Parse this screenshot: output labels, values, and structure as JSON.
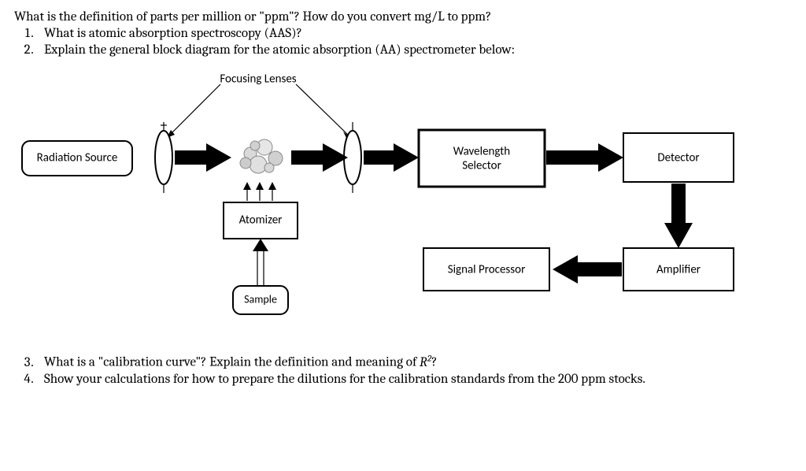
{
  "intro": "What is the definition of parts per million or \"ppm\"? How do you convert mg/L to ppm?",
  "q1": "What is atomic absorption spectroscopy (AAS)?",
  "q2": "Explain the general block diagram for the atomic absorption (AA) spectrometer below:",
  "q3_prefix": "What is a \"calibration curve\"? Explain the definition and meaning of ",
  "q3_r2": "R²",
  "q3_suffix": "?",
  "q4": "Show your calculations for how to prepare the dilutions for the calibration standards from the 200 ppm stocks.",
  "diagram": {
    "focusing_lenses": "Focusing Lenses",
    "radiation_source": "Radiation Source",
    "atomizer": "Atomizer",
    "sample": "Sample",
    "wavelength_selector_l1": "Wavelength",
    "wavelength_selector_l2": "Selector",
    "detector": "Detector",
    "signal_processor": "Signal Processor",
    "amplifier": "Amplifier",
    "colors": {
      "stroke": "#000000",
      "fill": "#ffffff",
      "arrow": "#000000"
    },
    "font_family": "Calibri, Arial, sans-serif",
    "label_fontsize": 15
  }
}
